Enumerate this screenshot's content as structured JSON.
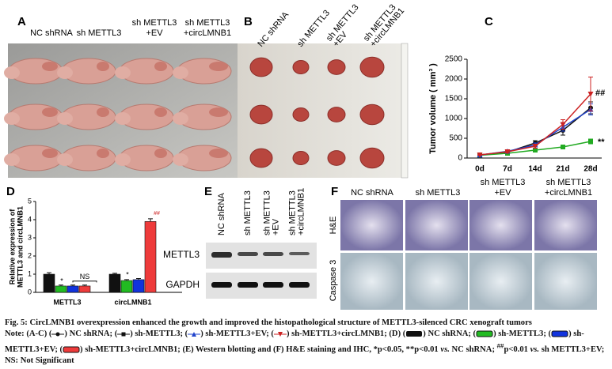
{
  "panel_labels": [
    "A",
    "B",
    "C",
    "D",
    "E",
    "F"
  ],
  "panel_a": {
    "columns": [
      [
        "NC shRNA"
      ],
      [
        "sh METTL3"
      ],
      [
        "sh METTL3",
        "+EV"
      ],
      [
        "sh METTL3",
        "+circLMNB1"
      ]
    ]
  },
  "panel_b": {
    "columns": [
      [
        "NC shRNA"
      ],
      [
        "sh METTL3"
      ],
      [
        "sh METTL3",
        "+EV"
      ],
      [
        "sh METTL3",
        "+circLMNB1"
      ]
    ]
  },
  "panel_e": {
    "columns": [
      [
        "NC shRNA"
      ],
      [
        "sh METTL3"
      ],
      [
        "sh METTL3",
        "+EV"
      ],
      [
        "sh METTL3",
        "+circLMNB1"
      ]
    ],
    "rows": [
      "METTL3",
      "GAPDH"
    ]
  },
  "panel_f": {
    "columns": [
      [
        "NC shRNA"
      ],
      [
        "sh METTL3"
      ],
      [
        "sh METTL3",
        "+EV"
      ],
      [
        "sh METTL3",
        "+circLMNB1"
      ]
    ],
    "rows": [
      "H&E",
      "Caspase 3"
    ]
  },
  "chart_data": [
    {
      "type": "line",
      "ylabel": "Tumor volume ( mm³ )",
      "categories": [
        "0d",
        "7d",
        "14d",
        "21d",
        "28d"
      ],
      "ylim": [
        0,
        2500
      ],
      "yticks": [
        0,
        500,
        1000,
        1500,
        2000,
        2500
      ],
      "series": [
        {
          "name": "NC shRNA",
          "color": "#111111",
          "marker": "circle",
          "values": [
            80,
            150,
            380,
            700,
            1270
          ],
          "errors": [
            10,
            30,
            60,
            120,
            150
          ]
        },
        {
          "name": "sh-METTL3",
          "color": "#22aa22",
          "marker": "square",
          "values": [
            70,
            120,
            200,
            280,
            420
          ],
          "errors": [
            10,
            20,
            30,
            40,
            60
          ]
        },
        {
          "name": "sh-METTL3+EV",
          "color": "#2244cc",
          "marker": "triangle",
          "values": [
            75,
            170,
            330,
            780,
            1230
          ],
          "errors": [
            10,
            30,
            50,
            100,
            140
          ]
        },
        {
          "name": "sh-METTL3+circLMNB1",
          "color": "#cc2222",
          "marker": "triangle-down",
          "values": [
            80,
            160,
            300,
            850,
            1620
          ],
          "errors": [
            10,
            30,
            50,
            120,
            430
          ]
        }
      ],
      "annotations": [
        "##",
        "**"
      ]
    },
    {
      "type": "bar",
      "ylabel": [
        "Relative expression of",
        "METTL3 and circLMNB1"
      ],
      "categories": [
        "METTL3",
        "circLMNB1"
      ],
      "ylim": [
        0,
        5
      ],
      "yticks": [
        0,
        1,
        2,
        3,
        4,
        5
      ],
      "series": [
        {
          "name": "NC shRNA",
          "color": "#111111",
          "values": [
            1.0,
            1.0
          ],
          "errors": [
            0.08,
            0.05
          ]
        },
        {
          "name": "sh-METTL3",
          "color": "#22bb22",
          "values": [
            0.35,
            0.65
          ],
          "errors": [
            0.05,
            0.05
          ]
        },
        {
          "name": "sh-METTL3+EV",
          "color": "#1133dd",
          "values": [
            0.35,
            0.7
          ],
          "errors": [
            0.05,
            0.06
          ]
        },
        {
          "name": "sh-METTL3+circLMNB1",
          "color": "#ee3b3b",
          "values": [
            0.35,
            3.9
          ],
          "errors": [
            0.05,
            0.15
          ]
        }
      ],
      "annotations": [
        "*",
        "NS",
        "*",
        "##"
      ]
    }
  ],
  "caption": {
    "title": "Fig. 5: CircLMNB1 overexpression enhanced the growth and improved the histopathological structure of METTL3-silenced CRC xenograft tumors",
    "note": [
      "Note: (A-C) (",
      ") NC shRNA; (",
      ") sh-METTL3; (",
      ") sh-METTL3+EV; (",
      ") sh-METTL3+circLMNB1; (D) (",
      ") NC shRNA; (",
      ") sh-METTL3; (",
      ") sh-METTL3+EV; (",
      ") sh-METTL3+circLMNB1; (E) Western blotting and (F) H&E staining and IHC, *p<0.05, **p<0.01 ",
      "vs.",
      " NC shRNA; ",
      "##",
      "p<0.01 ",
      "vs.",
      " sh METTL3+EV; NS: Not Significant"
    ]
  }
}
